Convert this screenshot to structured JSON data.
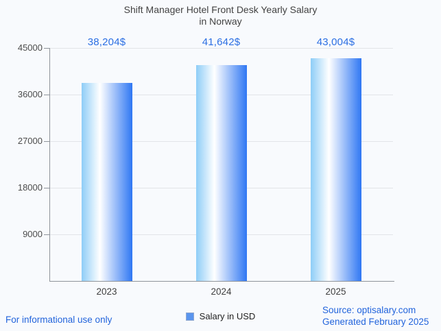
{
  "title": {
    "line1": "Shift Manager Hotel Front Desk Yearly Salary",
    "line2": "in Norway"
  },
  "chart_data": {
    "type": "bar",
    "title": "Shift Manager Hotel Front Desk Yearly Salary in Norway",
    "categories": [
      "2023",
      "2024",
      "2025"
    ],
    "values": [
      38204,
      41642,
      43004
    ],
    "value_labels": [
      "38,204$",
      "41,642$",
      "43,004$"
    ],
    "series_name": "Salary in USD",
    "xlabel": "",
    "ylabel": "",
    "ylim": [
      0,
      45000
    ],
    "yticks": [
      9000,
      18000,
      27000,
      36000,
      45000
    ],
    "grid": "horizontal",
    "legend_position": "bottom-center"
  },
  "legend": {
    "label": "Salary in USD",
    "marker_color": "#5a95ee",
    "marker_border": "#93a9cf"
  },
  "footer": {
    "left_note": "For informational use only",
    "source": "Source: optisalary.com",
    "generated": "Generated February 2025"
  },
  "colors": {
    "background": "#f8fafd",
    "title_text": "#424242",
    "axis_label": "#4c4c4c",
    "x_label": "#3f3f3f",
    "value_label": "#2b6fe3",
    "footer_link": "#2264dc",
    "legend_text": "#1f1f1f",
    "gridline": "#e2e4e8",
    "axis_line": "#8f949a",
    "bar_gradient": [
      "#8ecdf7",
      "#ffffff",
      "#2f77f3"
    ]
  }
}
